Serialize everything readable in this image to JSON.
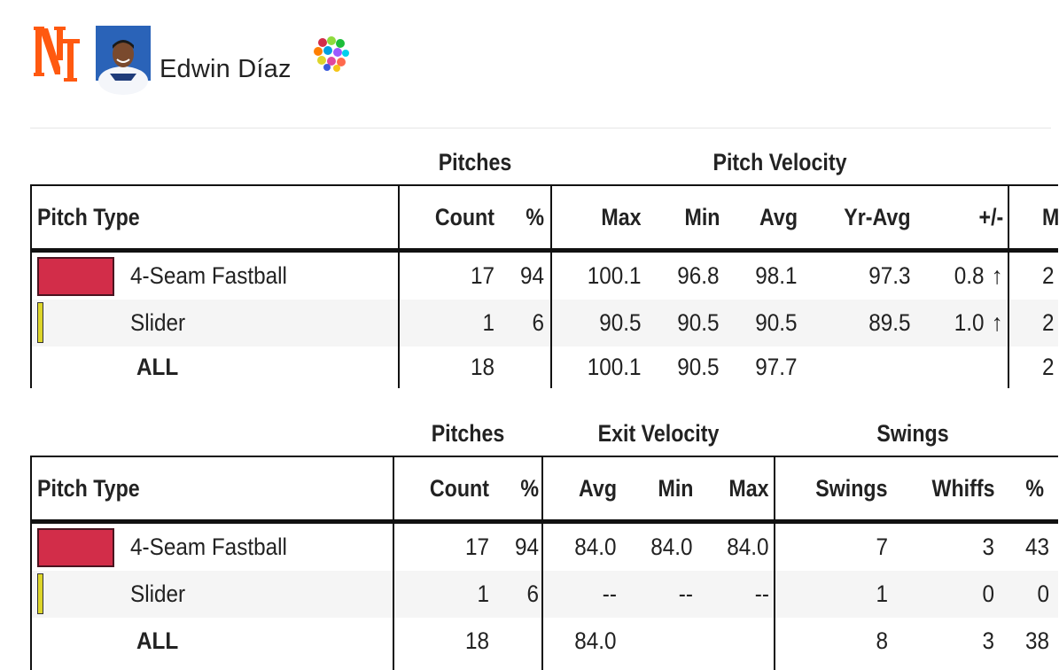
{
  "player": {
    "name": "Edwin Díaz",
    "team_logo": "ny-mets-logo",
    "avatar": "player-headshot",
    "badge": "colored-dots-icon"
  },
  "colors": {
    "fastball": "#d22d49",
    "slider": "#ddd52a",
    "positive_delta": "#6e0f0f"
  },
  "velocity_table": {
    "groups": {
      "pitches": "Pitches",
      "velocity": "Pitch Velocity"
    },
    "headers": {
      "pitch_type": "Pitch Type",
      "count": "Count",
      "pct": "%",
      "max": "Max",
      "min": "Min",
      "avg": "Avg",
      "yr_avg": "Yr-Avg",
      "delta": "+/-",
      "next": "M"
    },
    "rows": [
      {
        "name": "4-Seam Fastball",
        "count": "17",
        "pct": "94",
        "max": "100.1",
        "min": "96.8",
        "avg": "98.1",
        "yr_avg": "97.3",
        "delta": "0.8",
        "arrow": "↑",
        "next": "2"
      },
      {
        "name": "Slider",
        "count": "1",
        "pct": "6",
        "max": "90.5",
        "min": "90.5",
        "avg": "90.5",
        "yr_avg": "89.5",
        "delta": "1.0",
        "arrow": "↑",
        "next": "2"
      },
      {
        "name": "ALL",
        "count": "18",
        "pct": "",
        "max": "100.1",
        "min": "90.5",
        "avg": "97.7",
        "yr_avg": "",
        "delta": "",
        "arrow": "",
        "next": "2"
      }
    ]
  },
  "exit_table": {
    "groups": {
      "pitches": "Pitches",
      "exit": "Exit Velocity",
      "swings": "Swings"
    },
    "headers": {
      "pitch_type": "Pitch Type",
      "count": "Count",
      "pct": "%",
      "avg": "Avg",
      "min": "Min",
      "max": "Max",
      "swings": "Swings",
      "whiffs": "Whiffs",
      "whiff_pct": "%"
    },
    "rows": [
      {
        "name": "4-Seam Fastball",
        "count": "17",
        "pct": "94",
        "avg": "84.0",
        "min": "84.0",
        "max": "84.0",
        "swings": "7",
        "whiffs": "3",
        "whiff_pct": "43"
      },
      {
        "name": "Slider",
        "count": "1",
        "pct": "6",
        "avg": "--",
        "min": "--",
        "max": "--",
        "swings": "1",
        "whiffs": "0",
        "whiff_pct": "0"
      },
      {
        "name": "ALL",
        "count": "18",
        "pct": "",
        "avg": "84.0",
        "min": "",
        "max": "",
        "swings": "8",
        "whiffs": "3",
        "whiff_pct": "38"
      }
    ]
  }
}
